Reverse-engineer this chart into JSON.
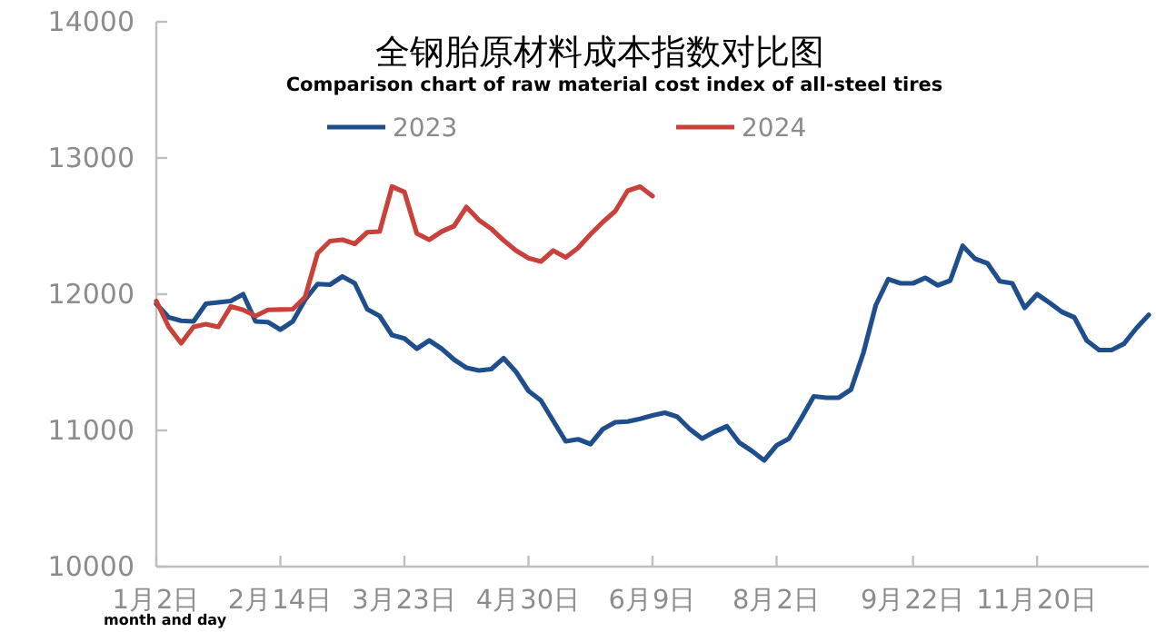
{
  "chart_data": {
    "type": "line",
    "title": "全钢胎原材料成本指数对比图",
    "subtitle": "Comparison chart of raw material cost index of all-steel tires",
    "xlabel": "month and day",
    "legend": "top",
    "line_style": "solid",
    "categories": [
      "1月2日",
      null,
      null,
      null,
      null,
      null,
      null,
      null,
      null,
      null,
      "2月14日",
      null,
      null,
      null,
      null,
      null,
      null,
      null,
      null,
      null,
      "3月23日",
      null,
      null,
      null,
      null,
      null,
      null,
      null,
      null,
      null,
      "4月30日",
      null,
      null,
      null,
      null,
      null,
      null,
      null,
      null,
      null,
      "6月9日",
      null,
      null,
      null,
      null,
      null,
      null,
      null,
      null,
      null,
      "8月2日",
      null,
      null,
      null,
      null,
      null,
      null,
      null,
      null,
      null,
      null,
      "9月22日",
      null,
      null,
      null,
      null,
      null,
      null,
      null,
      null,
      null,
      "11月20日",
      null,
      null,
      null,
      null,
      null,
      null,
      null,
      null,
      null
    ],
    "ylim": [
      10000,
      14000
    ],
    "yticks": [
      10000,
      11000,
      12000,
      13000,
      14000
    ],
    "series": [
      {
        "name": "2023",
        "color": "#1f4e8c",
        "values": [
          11930,
          11830,
          11805,
          11800,
          11930,
          11940,
          11950,
          12000,
          11800,
          11795,
          11740,
          11800,
          11960,
          12075,
          12070,
          12130,
          12080,
          11890,
          11840,
          11700,
          11675,
          11600,
          11660,
          11600,
          11520,
          11460,
          11440,
          11450,
          11530,
          11430,
          11290,
          11220,
          11070,
          10920,
          10935,
          10900,
          11010,
          11060,
          11065,
          11085,
          11110,
          11130,
          11100,
          11010,
          10940,
          10990,
          11030,
          10910,
          10850,
          10780,
          10890,
          10940,
          11090,
          11250,
          11240,
          11240,
          11300,
          11570,
          11920,
          12110,
          12080,
          12080,
          12120,
          12065,
          12100,
          12355,
          12260,
          12227,
          12095,
          12080,
          11900,
          12000,
          11938,
          11870,
          11830,
          11660,
          11590,
          11590,
          11636,
          11750,
          11849
        ]
      },
      {
        "name": "2024",
        "color": "#c8413a",
        "values": [
          11950,
          11760,
          11640,
          11760,
          11780,
          11760,
          11910,
          11885,
          11840,
          11885,
          11888,
          11890,
          11980,
          12300,
          12390,
          12400,
          12370,
          12455,
          12460,
          12790,
          12750,
          12445,
          12400,
          12460,
          12500,
          12640,
          12545,
          12480,
          12395,
          12320,
          12265,
          12240,
          12320,
          12270,
          12340,
          12440,
          12530,
          12610,
          12760,
          12790,
          12720,
          null,
          null,
          null,
          null,
          null,
          null,
          null,
          null,
          null,
          null,
          null,
          null,
          null,
          null,
          null,
          null,
          null,
          null,
          null,
          null,
          null,
          null,
          null,
          null,
          null,
          null,
          null,
          null,
          null,
          null,
          null,
          null,
          null,
          null,
          null,
          null,
          null,
          null,
          null,
          null
        ]
      }
    ]
  }
}
